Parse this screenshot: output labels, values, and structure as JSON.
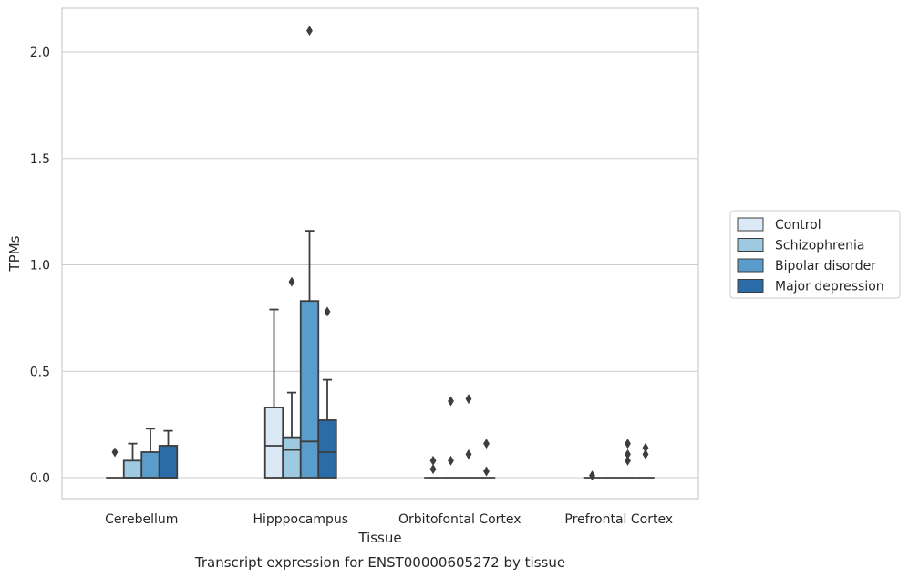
{
  "chart_data": {
    "type": "box",
    "caption": "Transcript expression for ENST00000605272 by tissue",
    "xlabel": "Tissue",
    "ylabel": "TPMs",
    "ylim": [
      -0.1,
      2.22
    ],
    "yticks": [
      0.0,
      0.5,
      1.0,
      1.5,
      2.0
    ],
    "ytick_labels": [
      "0.0",
      "0.5",
      "1.0",
      "1.5",
      "2.0"
    ],
    "grid": "horizontal",
    "legend_position": "right",
    "categories": [
      "Cerebellum",
      "Hipppocampus",
      "Orbitofontal Cortex",
      "Prefrontal Cortex"
    ],
    "series": [
      {
        "name": "Control",
        "color": "#dbe9f6",
        "boxes": [
          {
            "whislo": 0.0,
            "q1": 0.0,
            "med": 0.0,
            "q3": 0.0,
            "whishi": 0.0,
            "fliers": [
              0.12
            ]
          },
          {
            "whislo": 0.0,
            "q1": 0.0,
            "med": 0.15,
            "q3": 0.33,
            "whishi": 0.79,
            "fliers": []
          },
          {
            "whislo": 0.0,
            "q1": 0.0,
            "med": 0.0,
            "q3": 0.0,
            "whishi": 0.0,
            "fliers": [
              0.04,
              0.08
            ]
          },
          {
            "whislo": 0.0,
            "q1": 0.0,
            "med": 0.0,
            "q3": 0.0,
            "whishi": 0.0,
            "fliers": [
              0.01
            ]
          }
        ]
      },
      {
        "name": "Schizophrenia",
        "color": "#9ecae1",
        "boxes": [
          {
            "whislo": 0.0,
            "q1": 0.0,
            "med": 0.0,
            "q3": 0.08,
            "whishi": 0.16,
            "fliers": []
          },
          {
            "whislo": 0.0,
            "q1": 0.0,
            "med": 0.13,
            "q3": 0.19,
            "whishi": 0.4,
            "fliers": [
              0.92
            ]
          },
          {
            "whislo": 0.0,
            "q1": 0.0,
            "med": 0.0,
            "q3": 0.0,
            "whishi": 0.0,
            "fliers": [
              0.08,
              0.36
            ]
          },
          {
            "whislo": 0.0,
            "q1": 0.0,
            "med": 0.0,
            "q3": 0.0,
            "whishi": 0.0,
            "fliers": []
          }
        ]
      },
      {
        "name": "Bipolar disorder",
        "color": "#5a9ccb",
        "boxes": [
          {
            "whislo": 0.0,
            "q1": 0.0,
            "med": 0.0,
            "q3": 0.12,
            "whishi": 0.23,
            "fliers": []
          },
          {
            "whislo": 0.0,
            "q1": 0.0,
            "med": 0.17,
            "q3": 0.83,
            "whishi": 1.16,
            "fliers": [
              2.1
            ]
          },
          {
            "whislo": 0.0,
            "q1": 0.0,
            "med": 0.0,
            "q3": 0.0,
            "whishi": 0.0,
            "fliers": [
              0.11,
              0.37
            ]
          },
          {
            "whislo": 0.0,
            "q1": 0.0,
            "med": 0.0,
            "q3": 0.0,
            "whishi": 0.0,
            "fliers": [
              0.08,
              0.11,
              0.16
            ]
          }
        ]
      },
      {
        "name": "Major depression",
        "color": "#2b6ca8",
        "boxes": [
          {
            "whislo": 0.0,
            "q1": 0.0,
            "med": 0.0,
            "q3": 0.15,
            "whishi": 0.22,
            "fliers": []
          },
          {
            "whislo": 0.0,
            "q1": 0.0,
            "med": 0.12,
            "q3": 0.27,
            "whishi": 0.46,
            "fliers": [
              0.78
            ]
          },
          {
            "whislo": 0.0,
            "q1": 0.0,
            "med": 0.0,
            "q3": 0.0,
            "whishi": 0.0,
            "fliers": [
              0.03,
              0.16
            ]
          },
          {
            "whislo": 0.0,
            "q1": 0.0,
            "med": 0.0,
            "q3": 0.0,
            "whishi": 0.0,
            "fliers": [
              0.11,
              0.14
            ]
          }
        ]
      }
    ]
  }
}
